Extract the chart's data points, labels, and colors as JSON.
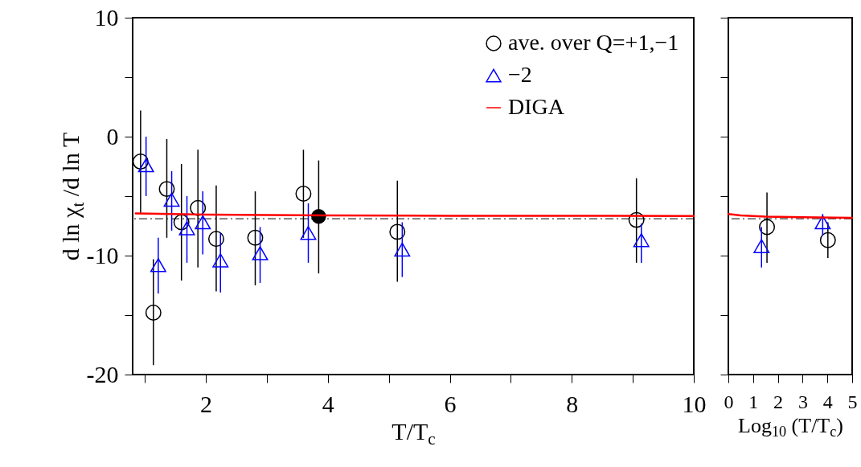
{
  "chart_data": [
    {
      "type": "scatter",
      "xlabel": "T/T$_{c}$",
      "ylabel": "d ln χ$_{t}$ /d ln T",
      "xlim": [
        0.8,
        10
      ],
      "ylim": [
        -20,
        10
      ],
      "xticks": [
        {
          "value": 1,
          "label": null
        },
        2,
        {
          "value": 3,
          "label": null
        },
        4,
        {
          "value": 5,
          "label": null
        },
        6,
        {
          "value": 7,
          "label": null
        },
        8,
        {
          "value": 9,
          "label": null
        },
        10
      ],
      "yticks": [
        -20,
        {
          "value": -15,
          "label": null
        },
        -10,
        {
          "value": -5,
          "label": null
        },
        0,
        {
          "value": 5,
          "label": null
        },
        10
      ],
      "grid": false,
      "legend": "top right",
      "series": [
        {
          "name": "ave. over Q=+1,−1",
          "color": "#000000",
          "marker": "circle",
          "x": [
            0.93,
            1.14,
            1.36,
            1.6,
            1.87,
            2.17,
            2.81,
            3.6,
            5.14,
            9.06
          ],
          "values": [
            -2.1,
            -14.8,
            -4.4,
            -7.2,
            -6.0,
            -8.6,
            -8.5,
            -4.8,
            -8.0,
            -7.0
          ],
          "errors": [
            [
              -6.4,
              2.2
            ],
            [
              -19.2,
              -10.3
            ],
            [
              -8.5,
              -0.2
            ],
            [
              -12.1,
              -2.3
            ],
            [
              -11.0,
              -1.1
            ],
            [
              -13.0,
              -4.1
            ],
            [
              -12.5,
              -4.6
            ],
            [
              -8.5,
              -1.1
            ],
            [
              -12.2,
              -3.7
            ],
            [
              -10.6,
              -3.5
            ]
          ]
        },
        {
          "name": "−2",
          "color": "#0000ff",
          "marker": "triangle",
          "x": [
            1.02,
            1.22,
            1.44,
            1.69,
            1.95,
            2.24,
            2.89,
            3.68,
            5.22,
            9.14
          ],
          "values": [
            -2.4,
            -10.8,
            -5.3,
            -7.7,
            -7.2,
            -10.4,
            -9.8,
            -8.1,
            -9.5,
            -8.7
          ],
          "errors": [
            [
              -5.0,
              0.0
            ],
            [
              -13.2,
              -8.5
            ],
            [
              -7.9,
              -2.9
            ],
            [
              -10.6,
              -5.0
            ],
            [
              -9.9,
              -4.6
            ],
            [
              -13.1,
              -8.1
            ],
            [
              -12.3,
              -7.6
            ],
            [
              -10.6,
              -5.6
            ],
            [
              -11.8,
              -7.2
            ],
            [
              -10.6,
              -7.3
            ]
          ]
        },
        {
          "color": "#000000",
          "marker": "circle",
          "x": [
            3.85
          ],
          "values": [
            -6.7
          ],
          "errors": [
            [
              -11.5,
              -2.0
            ]
          ]
        },
        {
          "name": "DIGA",
          "type": "line",
          "color": "#ff0000",
          "x": [
            0.85,
            2,
            4,
            6,
            8,
            10
          ],
          "values": [
            -6.45,
            -6.55,
            -6.62,
            -6.65,
            -6.66,
            -6.67
          ]
        }
      ],
      "ref_lines": [
        {
          "axis": "y",
          "value": -6.9,
          "color": "#000000",
          "line_style": "dashed"
        }
      ]
    },
    {
      "type": "scatter",
      "xlabel": "Log$_{10}$ (T/T$_{c}$)",
      "xlim": [
        0,
        5
      ],
      "ylim": [
        -20,
        10
      ],
      "xticks": [
        0,
        1,
        2,
        3,
        4,
        5
      ],
      "yticks": [
        -20,
        -15,
        -10,
        -5,
        0,
        5,
        10
      ],
      "tick_labels": "x",
      "grid": false,
      "series": [
        {
          "color": "#000000",
          "marker": "circle",
          "x": [
            1.56,
            4.02
          ],
          "values": [
            -7.6,
            -8.7
          ],
          "errors": [
            [
              -10.6,
              -4.7
            ],
            [
              -10.2,
              -7.2
            ]
          ]
        },
        {
          "color": "#0000ff",
          "marker": "triangle",
          "x": [
            1.34,
            3.81
          ],
          "values": [
            -9.2,
            -7.2
          ],
          "errors": [
            [
              -11.0,
              -7.6
            ],
            [
              -8.3,
              -6.5
            ]
          ]
        },
        {
          "type": "line",
          "color": "#ff0000",
          "x": [
            0,
            0.5,
            1.5,
            3,
            5
          ],
          "values": [
            -6.5,
            -6.62,
            -6.72,
            -6.78,
            -6.82
          ]
        }
      ],
      "ref_lines": [
        {
          "axis": "y",
          "value": -6.9,
          "color": "#000000",
          "line_style": "dashed"
        }
      ]
    }
  ]
}
